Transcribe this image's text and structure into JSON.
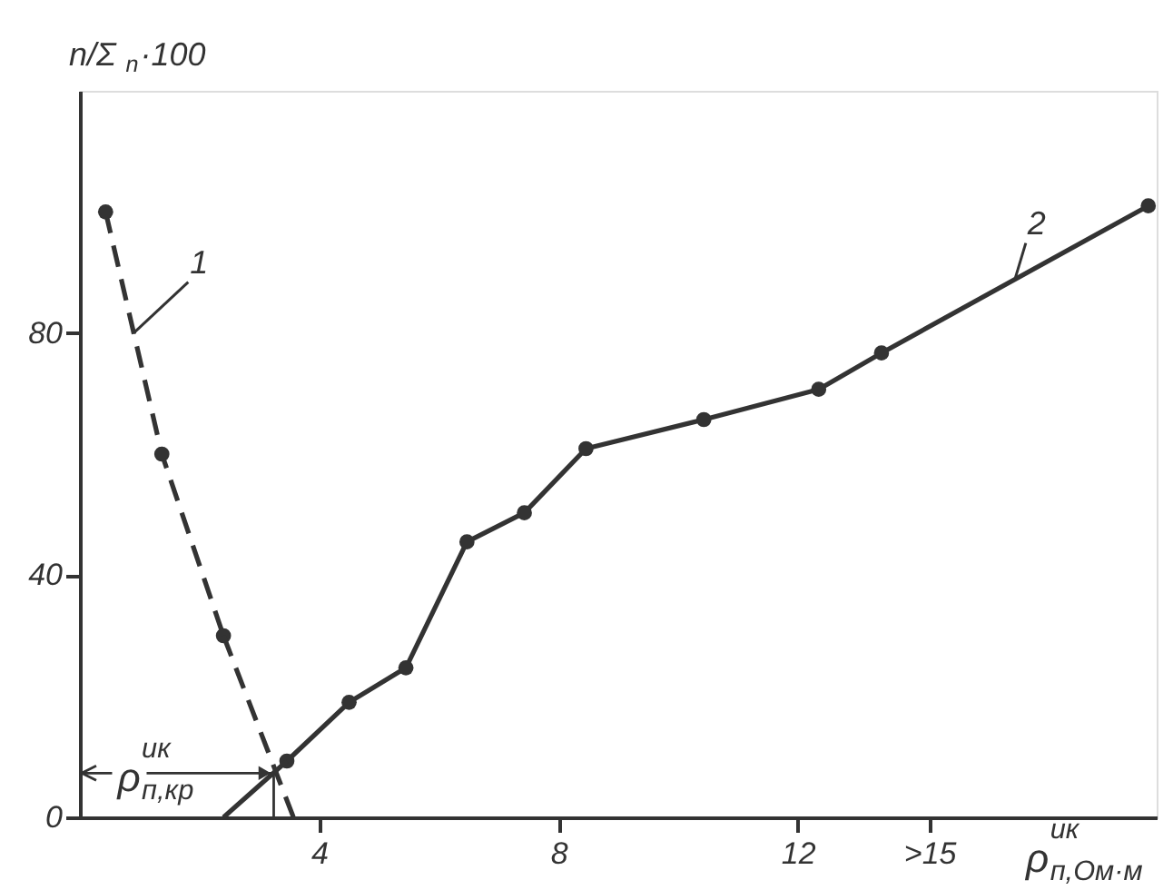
{
  "chart_data": {
    "type": "line",
    "xlabel": "ρ$^{ик}$$_{п,Ом·м}$",
    "ylabel": "n/Σ$_{n}$·100",
    "xlim": [
      0,
      18
    ],
    "ylim": [
      0,
      120
    ],
    "xticks": [
      4,
      8,
      12,
      {
        "value": 14.2,
        "label": ">15"
      }
    ],
    "yticks": [
      0,
      40,
      80
    ],
    "grid": false,
    "series": [
      {
        "name": "1",
        "color": "#333333",
        "line_style": "dashed",
        "marker": "circle",
        "x": [
          0.43,
          1.37,
          2.4
        ],
        "values": [
          100,
          60,
          30
        ]
      },
      {
        "type": "line",
        "color": "#333333",
        "line_style": "dashed",
        "marker": "none",
        "x": [
          2.4,
          3.57
        ],
        "values": [
          30,
          0
        ]
      },
      {
        "name": "2",
        "color": "#333333",
        "line_style": "solid",
        "marker": "circle",
        "x": [
          3.46,
          4.5,
          5.45,
          6.47,
          7.43,
          8.46,
          10.43,
          12.35,
          13.4,
          17.86
        ],
        "values": [
          9.3,
          19,
          24.7,
          45.5,
          50.3,
          60.9,
          65.7,
          70.7,
          76.7,
          101
        ]
      },
      {
        "type": "line",
        "color": "#333333",
        "line_style": "solid",
        "marker": "none",
        "x": [
          2.4,
          3.46
        ],
        "values": [
          0,
          9.3
        ]
      },
      {
        "type": "line",
        "color": "#333333",
        "line_style": "solid",
        "marker": "none",
        "x": [
          3.24,
          3.24
        ],
        "values": [
          0,
          7.3
        ]
      }
    ],
    "annotations": [
      {
        "text": "ρ$^{ик}$$_{п,кр}$",
        "x": 3.24,
        "y": 7.3
      }
    ]
  }
}
